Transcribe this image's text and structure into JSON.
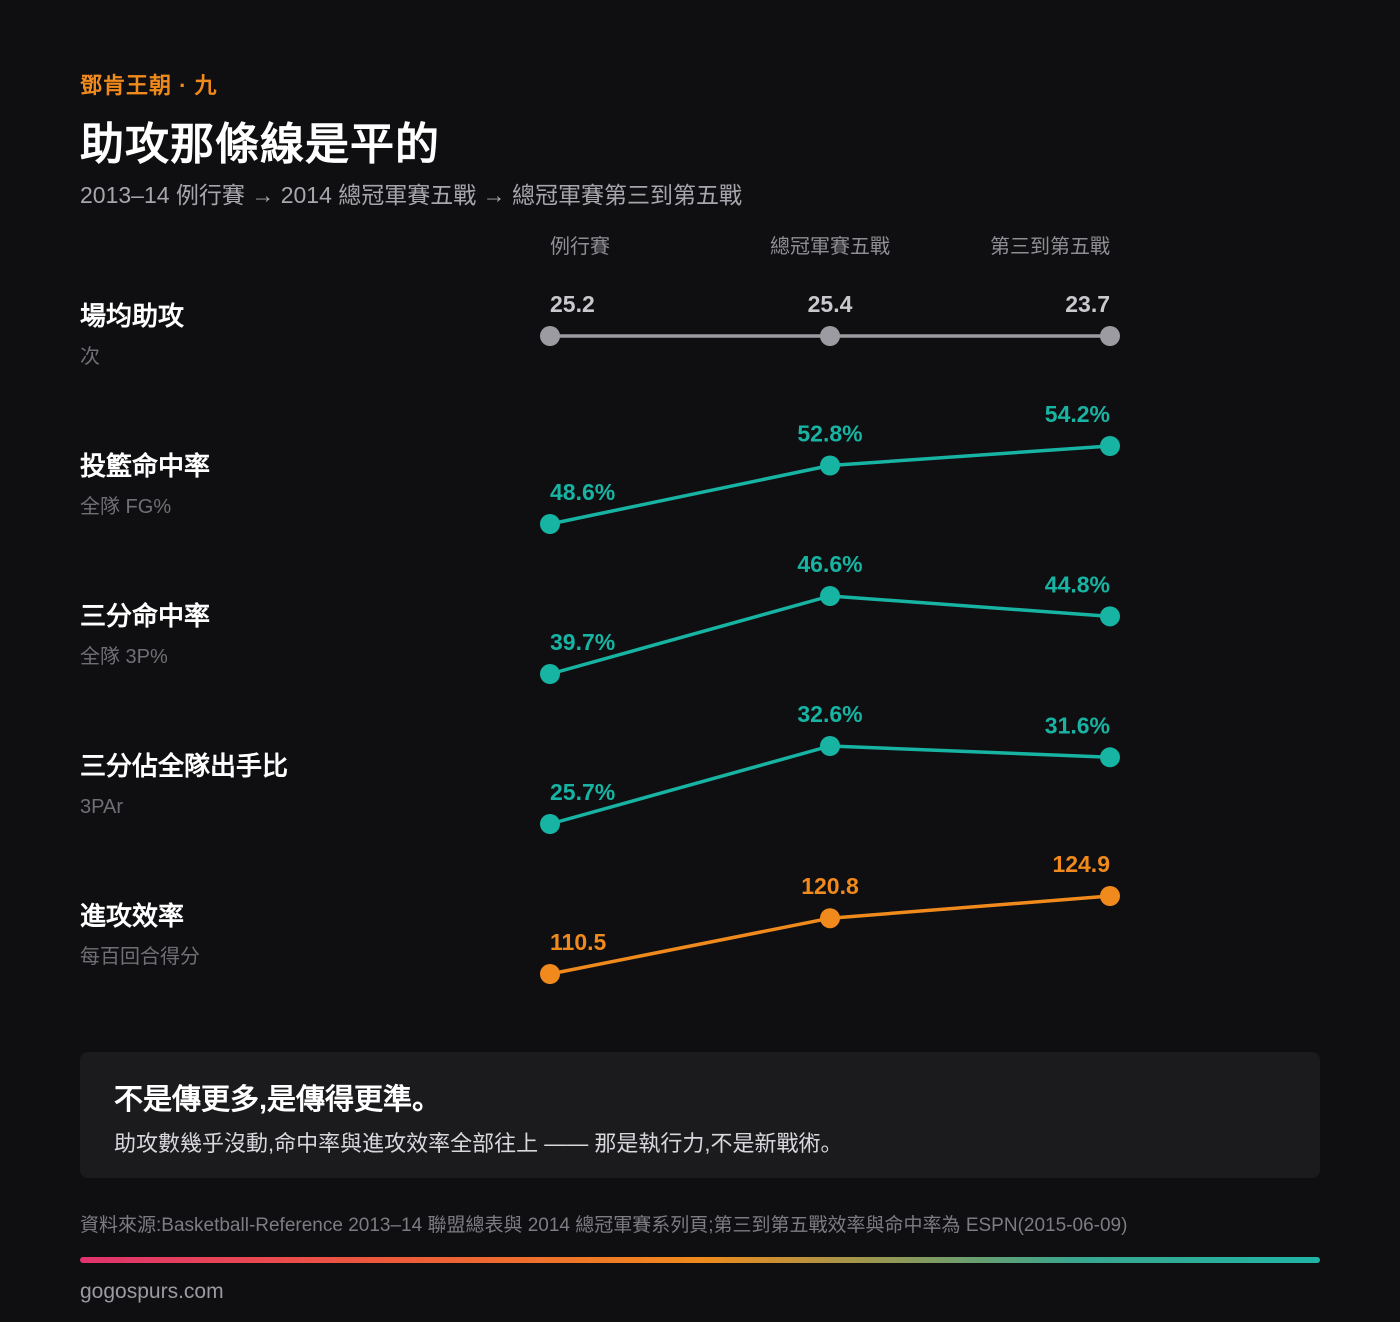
{
  "header": {
    "kicker": "鄧肯王朝 · 九",
    "title": "助攻那條線是平的",
    "subtitle": "2013–14 例行賽 → 2014 總冠軍賽五戰 → 總冠軍賽第三到第五戰"
  },
  "chart_data": {
    "type": "line",
    "categories": [
      "例行賽",
      "總冠軍賽五戰",
      "第三到第五戰"
    ],
    "rows": [
      {
        "label": "場均助攻",
        "sublabel": "次",
        "values": [
          25.2,
          25.4,
          23.7
        ],
        "value_labels": [
          "25.2",
          "25.4",
          "23.7"
        ],
        "color": "#9b9ba1",
        "ylim": [
          0,
          100
        ]
      },
      {
        "label": "投籃命中率",
        "sublabel": "全隊 FG%",
        "values": [
          48.6,
          52.8,
          54.2
        ],
        "value_labels": [
          "48.6%",
          "52.8%",
          "54.2%"
        ],
        "color": "#17b3a3",
        "ylim": [
          48.6,
          54.2
        ]
      },
      {
        "label": "三分命中率",
        "sublabel": "全隊 3P%",
        "values": [
          39.7,
          46.6,
          44.8
        ],
        "value_labels": [
          "39.7%",
          "46.6%",
          "44.8%"
        ],
        "color": "#17b3a3",
        "ylim": [
          39.7,
          46.6
        ]
      },
      {
        "label": "三分佔全隊出手比",
        "sublabel": "3PAr",
        "values": [
          25.7,
          32.6,
          31.6
        ],
        "value_labels": [
          "25.7%",
          "32.6%",
          "31.6%"
        ],
        "color": "#17b3a3",
        "ylim": [
          25.7,
          32.6
        ]
      },
      {
        "label": "進攻效率",
        "sublabel": "每百回合得分",
        "values": [
          110.5,
          120.8,
          124.9
        ],
        "value_labels": [
          "110.5",
          "120.8",
          "124.9"
        ],
        "color": "#f08a1c",
        "ylim": [
          110.5,
          124.9
        ]
      }
    ]
  },
  "callout": {
    "headline": "不是傳更多,是傳得更準。",
    "body": "助攻數幾乎沒動,命中率與進攻效率全部往上 —— 那是執行力,不是新戰術。"
  },
  "source": "資料來源:Basketball-Reference 2013–14 聯盟總表與 2014 總冠軍賽系列頁;第三到第五戰效率與命中率為 ESPN(2015-06-09)",
  "footer": "gogospurs.com"
}
